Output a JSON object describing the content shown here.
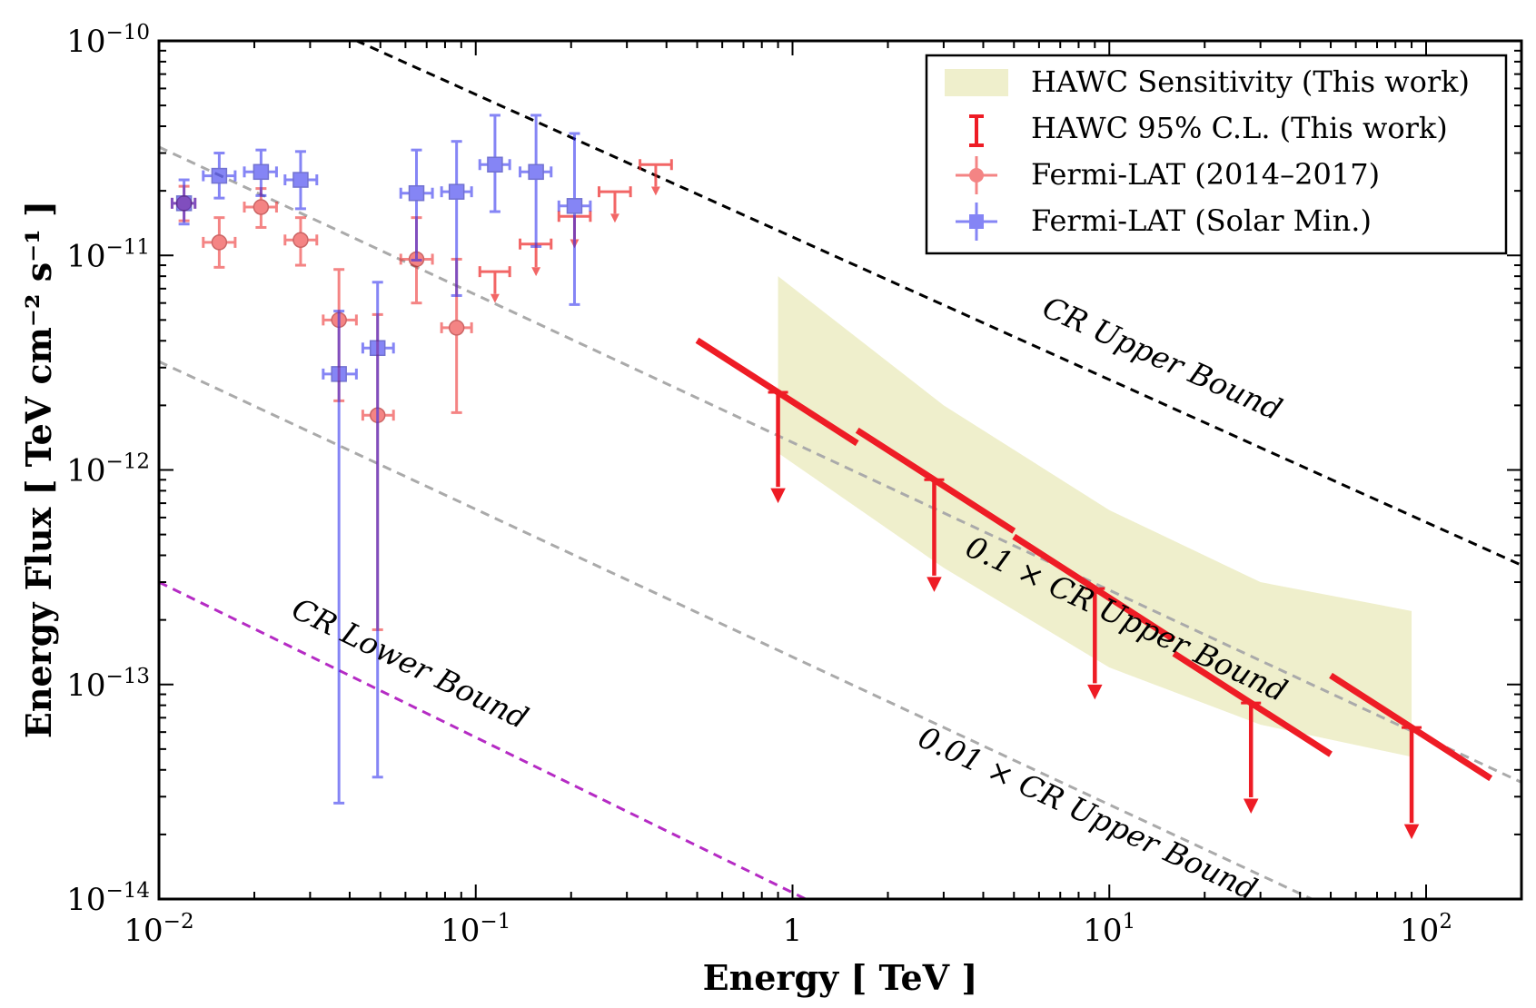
{
  "chart_data": {
    "type": "scatter",
    "xlabel": "Energy [ TeV ]",
    "ylabel": "Energy Flux [ TeV cm⁻² s⁻¹ ]",
    "xscale": "log",
    "yscale": "log",
    "xlim": [
      0.01,
      200
    ],
    "ylim": [
      1e-14,
      1e-10
    ],
    "xtick_labels": [
      {
        "value": 0.01,
        "base": "10",
        "exp": "−2"
      },
      {
        "value": 0.1,
        "base": "10",
        "exp": "−1"
      },
      {
        "value": 1,
        "base": "1",
        "exp": ""
      },
      {
        "value": 10,
        "base": "10",
        "exp": "1"
      },
      {
        "value": 100,
        "base": "10",
        "exp": "2"
      }
    ],
    "ytick_labels": [
      {
        "value": 1e-10,
        "base": "10",
        "exp": "−10"
      },
      {
        "value": 1e-11,
        "base": "10",
        "exp": "−11"
      },
      {
        "value": 1e-12,
        "base": "10",
        "exp": "−12"
      },
      {
        "value": 1e-13,
        "base": "10",
        "exp": "−13"
      },
      {
        "value": 1e-14,
        "base": "10",
        "exp": "−14"
      }
    ],
    "legend": {
      "placement": "top-right",
      "entries": [
        {
          "label": "HAWC Sensitivity (This work)",
          "marker": "band",
          "color": "#efefcc"
        },
        {
          "label": "HAWC 95% C.L. (This work)",
          "marker": "errorbar",
          "color": "#ee1c25"
        },
        {
          "label": "Fermi-LAT (2014–2017)",
          "marker": "circle",
          "color": "#ee3333"
        },
        {
          "label": "Fermi-LAT (Solar Min.)",
          "marker": "square",
          "color": "#2222ee"
        }
      ]
    },
    "reference_lines": [
      {
        "label": "CR Upper Bound",
        "color": "#000000",
        "x": [
          0.01,
          200
        ],
        "y": [
          2.6e-10,
          3.6e-13
        ]
      },
      {
        "label": "0.1 × CR Upper Bound",
        "color": "#aaaaaa",
        "x": [
          0.01,
          200
        ],
        "y": [
          3.2e-11,
          3.5e-14
        ]
      },
      {
        "label": "0.01 × CR Upper Bound",
        "color": "#aaaaaa",
        "x": [
          0.01,
          200
        ],
        "y": [
          3.2e-12,
          3.5e-15
        ]
      },
      {
        "label": "CR Lower Bound",
        "color": "#b52bc4",
        "x": [
          0.01,
          1.1
        ],
        "y": [
          3e-13,
          1e-14
        ]
      }
    ],
    "hawc_sensitivity_band": {
      "x": [
        0.9,
        3,
        10,
        30,
        90
      ],
      "upper": [
        8e-12,
        2e-12,
        6.5e-13,
        3e-13,
        2.2e-13
      ],
      "lower": [
        1.2e-12,
        3.5e-13,
        1.2e-13,
        6.5e-14,
        4.6e-14
      ]
    },
    "hawc_upper_limits": [
      {
        "x": 0.9,
        "y": 2.3e-12,
        "xmin": 0.5,
        "xmax": 1.6,
        "ylo_end": 7e-13
      },
      {
        "x": 2.8,
        "y": 9e-13,
        "xmin": 1.6,
        "xmax": 5.0,
        "ylo_end": 2.7e-13
      },
      {
        "x": 9.0,
        "y": 2.8e-13,
        "xmin": 5.0,
        "xmax": 16,
        "ylo_end": 8.5e-14
      },
      {
        "x": 28,
        "y": 8.2e-14,
        "xmin": 16,
        "xmax": 50,
        "ylo_end": 2.5e-14
      },
      {
        "x": 90,
        "y": 6.3e-14,
        "xmin": 50,
        "xmax": 160,
        "ylo_end": 1.9e-14
      }
    ],
    "fermi_lat_2014_2017": {
      "points": [
        {
          "x": 0.012,
          "y": 1.75e-11,
          "xerr": [
            0.011,
            0.013
          ],
          "yerr": [
            1.45e-11,
            2.1e-11
          ]
        },
        {
          "x": 0.0155,
          "y": 1.15e-11,
          "xerr": [
            0.0138,
            0.0174
          ],
          "yerr": [
            8.8e-12,
            1.5e-11
          ]
        },
        {
          "x": 0.021,
          "y": 1.68e-11,
          "xerr": [
            0.0186,
            0.0235
          ],
          "yerr": [
            1.35e-11,
            2.05e-11
          ]
        },
        {
          "x": 0.028,
          "y": 1.18e-11,
          "xerr": [
            0.025,
            0.0315
          ],
          "yerr": [
            9e-12,
            1.5e-11
          ]
        },
        {
          "x": 0.037,
          "y": 5e-12,
          "xerr": [
            0.033,
            0.042
          ],
          "yerr": [
            2.1e-12,
            8.6e-12
          ]
        },
        {
          "x": 0.049,
          "y": 1.8e-12,
          "xerr": [
            0.044,
            0.055
          ],
          "yerr": [
            1.8e-13,
            5.3e-12
          ]
        },
        {
          "x": 0.065,
          "y": 9.6e-12,
          "xerr": [
            0.058,
            0.073
          ],
          "yerr": [
            6e-12,
            1.5e-11
          ]
        },
        {
          "x": 0.087,
          "y": 4.6e-12,
          "xerr": [
            0.078,
            0.097
          ],
          "yerr": [
            1.85e-12,
            9.6e-12
          ]
        }
      ],
      "upper_limits": [
        {
          "x": 0.115,
          "y": 8.4e-12,
          "xerr": [
            0.103,
            0.128
          ],
          "arrow_to": 6e-12
        },
        {
          "x": 0.155,
          "y": 1.13e-11,
          "xerr": [
            0.138,
            0.173
          ],
          "arrow_to": 8e-12
        },
        {
          "x": 0.205,
          "y": 1.52e-11,
          "xerr": [
            0.183,
            0.23
          ],
          "arrow_to": 1.08e-11
        },
        {
          "x": 0.275,
          "y": 1.98e-11,
          "xerr": [
            0.245,
            0.308
          ],
          "arrow_to": 1.42e-11
        },
        {
          "x": 0.37,
          "y": 2.65e-11,
          "xerr": [
            0.33,
            0.415
          ],
          "arrow_to": 1.9e-11
        }
      ]
    },
    "fermi_lat_solar_min": {
      "points": [
        {
          "x": 0.012,
          "y": 1.75e-11,
          "xerr": [
            0.011,
            0.013
          ],
          "yerr": [
            1.4e-11,
            2.25e-11
          ]
        },
        {
          "x": 0.0155,
          "y": 2.35e-11,
          "xerr": [
            0.0138,
            0.0174
          ],
          "yerr": [
            1.85e-11,
            3e-11
          ]
        },
        {
          "x": 0.021,
          "y": 2.45e-11,
          "xerr": [
            0.0186,
            0.0235
          ],
          "yerr": [
            1.9e-11,
            3.1e-11
          ]
        },
        {
          "x": 0.028,
          "y": 2.25e-11,
          "xerr": [
            0.025,
            0.0315
          ],
          "yerr": [
            1.65e-11,
            3.05e-11
          ]
        },
        {
          "x": 0.037,
          "y": 2.8e-12,
          "xerr": [
            0.033,
            0.042
          ],
          "yerr": [
            2.8e-14,
            5.5e-12
          ]
        },
        {
          "x": 0.049,
          "y": 3.7e-12,
          "xerr": [
            0.044,
            0.055
          ],
          "yerr": [
            3.7e-14,
            7.5e-12
          ]
        },
        {
          "x": 0.065,
          "y": 1.95e-11,
          "xerr": [
            0.058,
            0.073
          ],
          "yerr": [
            9.5e-12,
            3.1e-11
          ]
        },
        {
          "x": 0.087,
          "y": 1.98e-11,
          "xerr": [
            0.078,
            0.097
          ],
          "yerr": [
            6.5e-12,
            3.4e-11
          ]
        },
        {
          "x": 0.115,
          "y": 2.65e-11,
          "xerr": [
            0.103,
            0.128
          ],
          "yerr": [
            1.6e-11,
            4.5e-11
          ]
        },
        {
          "x": 0.155,
          "y": 2.45e-11,
          "xerr": [
            0.138,
            0.173
          ],
          "yerr": [
            1.1e-11,
            4.5e-11
          ]
        },
        {
          "x": 0.205,
          "y": 1.7e-11,
          "xerr": [
            0.183,
            0.23
          ],
          "yerr": [
            5.9e-12,
            3.7e-11
          ]
        }
      ]
    }
  }
}
